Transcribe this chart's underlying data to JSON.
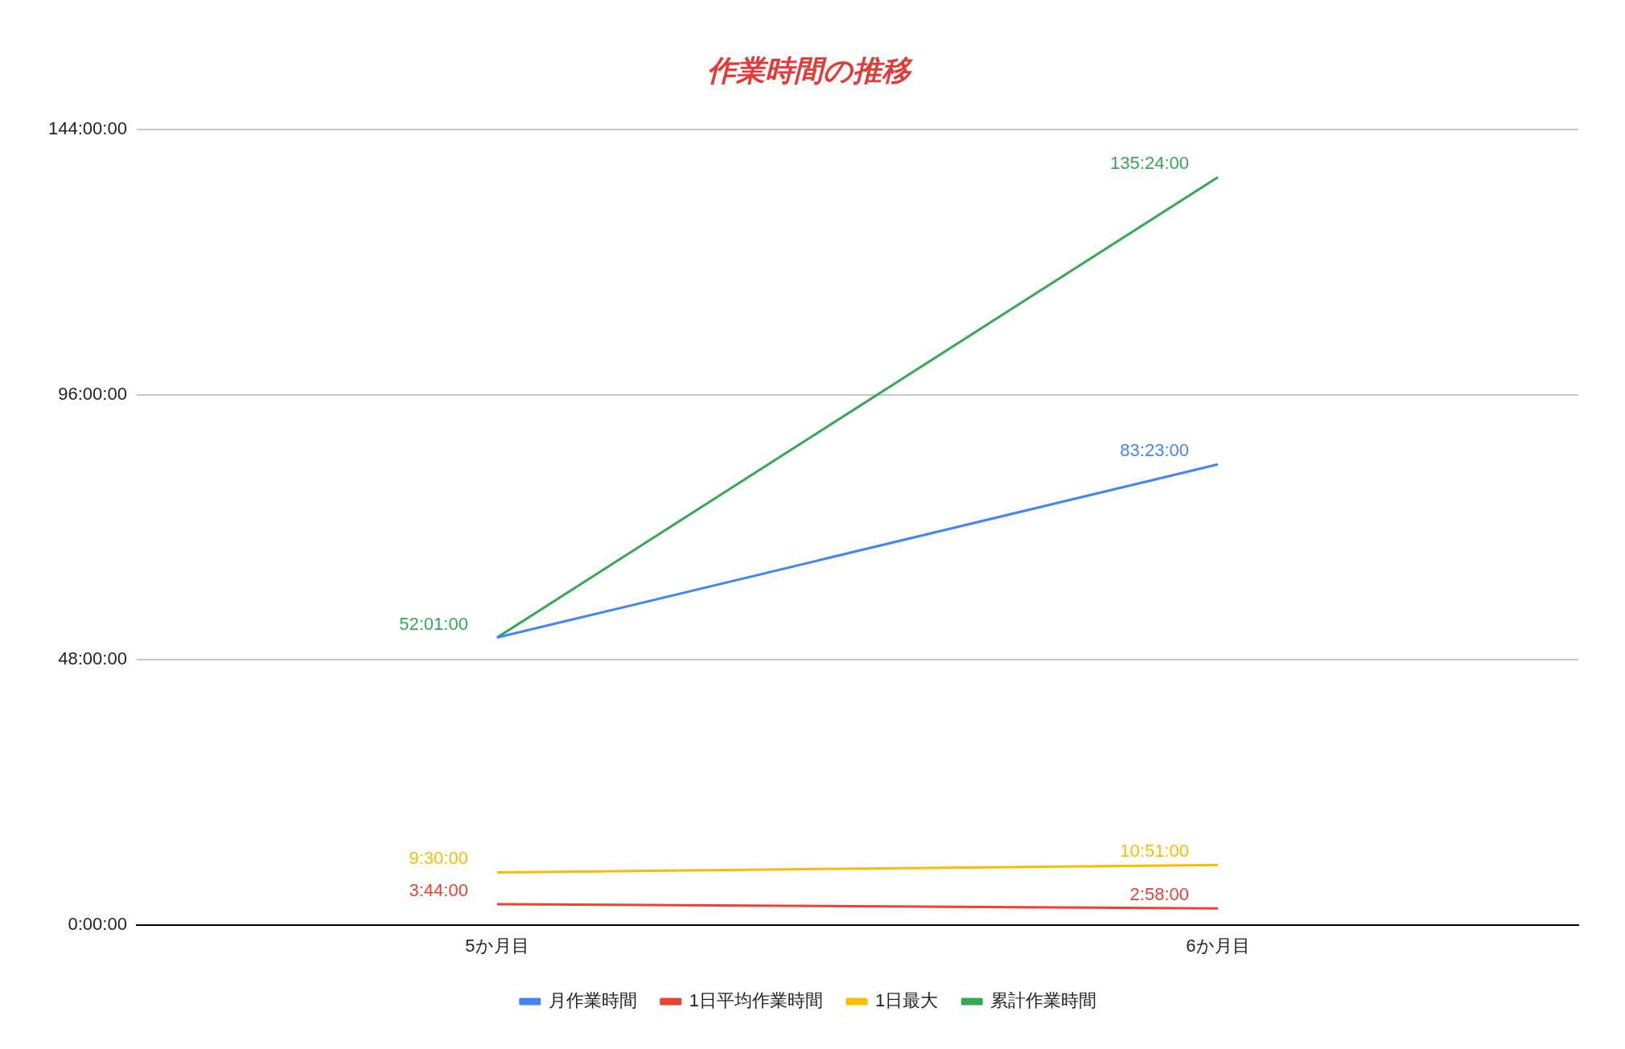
{
  "chart_data": {
    "type": "line",
    "title": "作業時間の推移",
    "categories": [
      "5か月目",
      "6か月目"
    ],
    "series": [
      {
        "name": "月作業時間",
        "color": "#4285f4",
        "values": [
          3121,
          5003
        ],
        "value_labels": [
          null,
          "83:23:00"
        ]
      },
      {
        "name": "1日平均作業時間",
        "color": "#ea4335",
        "values": [
          224,
          178
        ],
        "value_labels": [
          "3:44:00",
          "2:58:00"
        ]
      },
      {
        "name": "1日最大",
        "color": "#fbbc04",
        "values": [
          570,
          651
        ],
        "value_labels": [
          "9:30:00",
          "10:51:00"
        ]
      },
      {
        "name": "累計作業時間",
        "color": "#34a853",
        "values": [
          3121,
          8124
        ],
        "value_labels": [
          "52:01:00",
          "135:24:00"
        ]
      }
    ],
    "ylim": [
      0,
      8640
    ],
    "yticks": [
      {
        "value": 0,
        "label": "0:00:00"
      },
      {
        "value": 2880,
        "label": "48:00:00"
      },
      {
        "value": 5760,
        "label": "96:00:00"
      },
      {
        "value": 8640,
        "label": "144:00:00"
      }
    ],
    "grid": "y",
    "legend": "bottom",
    "marker": "none",
    "line_style": "solid"
  }
}
